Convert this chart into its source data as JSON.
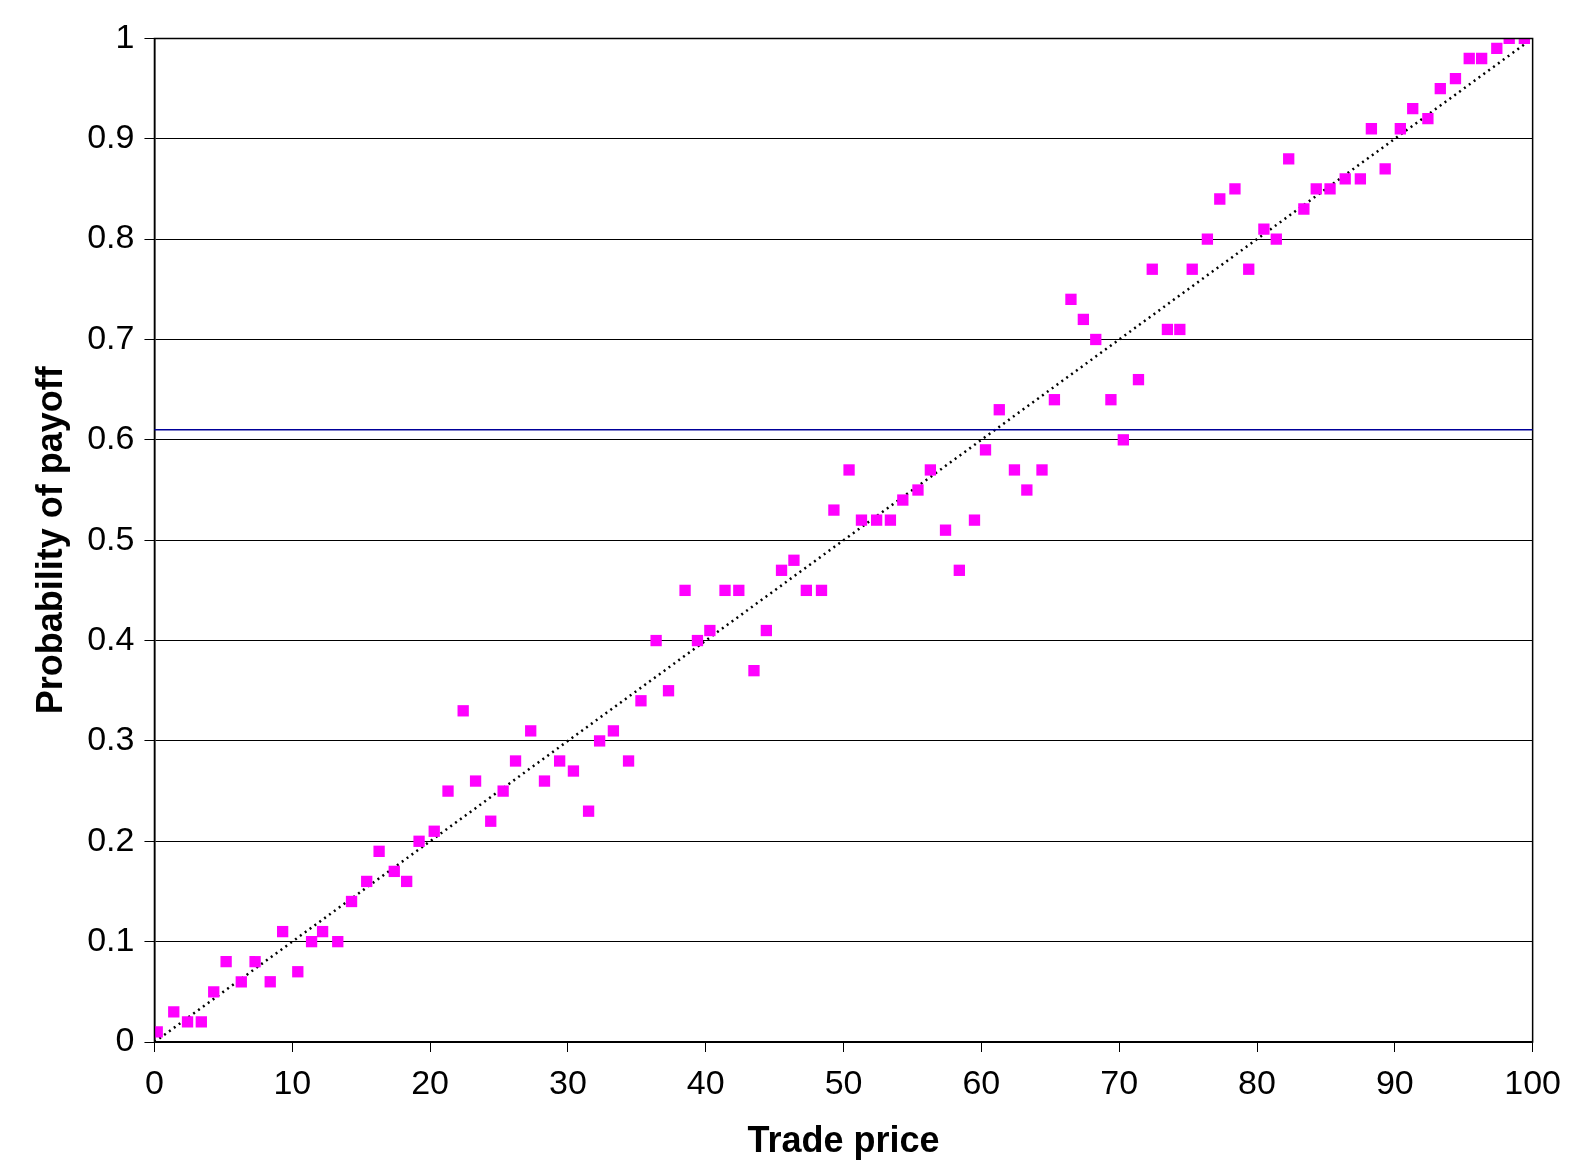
{
  "chart_data": {
    "type": "scatter",
    "xlabel": "Trade price",
    "ylabel": "Probability of payoff",
    "xlim": [
      0,
      100
    ],
    "xticks": [
      0,
      10,
      20,
      30,
      40,
      50,
      60,
      70,
      80,
      90,
      100
    ],
    "ylim": [
      0,
      1
    ],
    "yticks": [
      0,
      0.1,
      0.2,
      0.3,
      0.4,
      0.5,
      0.6,
      0.7,
      0.8,
      0.9,
      1
    ],
    "grid": "y",
    "legend": false,
    "marker": "square",
    "series": [
      {
        "color": "#ff00ff",
        "x": [
          0.2,
          1.4,
          2.4,
          3.4,
          4.3,
          5.2,
          6.3,
          7.3,
          8.4,
          9.3,
          10.4,
          11.4,
          12.2,
          13.3,
          14.3,
          15.4,
          16.3,
          17.4,
          18.3,
          19.2,
          20.3,
          21.3,
          22.4,
          23.3,
          24.4,
          25.3,
          26.2,
          27.3,
          28.3,
          29.4,
          30.4,
          31.5,
          32.3,
          33.3,
          34.4,
          35.3,
          36.4,
          37.3,
          38.5,
          39.4,
          40.3,
          41.4,
          42.4,
          43.5,
          44.4,
          45.5,
          46.4,
          47.3,
          48.4,
          49.3,
          50.4,
          51.3,
          52.4,
          53.4,
          54.3,
          55.4,
          56.3,
          57.4,
          58.4,
          59.5,
          60.3,
          61.3,
          62.4,
          63.3,
          64.4,
          65.3,
          66.5,
          67.4,
          68.3,
          69.4,
          70.3,
          71.4,
          72.4,
          73.5,
          74.4,
          75.3,
          76.4,
          77.3,
          78.4,
          79.4,
          80.5,
          81.4,
          82.3,
          83.4,
          84.3,
          85.3,
          86.4,
          87.5,
          88.3,
          89.3,
          90.4,
          91.3,
          92.4,
          93.3,
          94.4,
          95.4,
          96.3,
          97.4,
          98.3,
          99.4
        ],
        "values": [
          0.01,
          0.03,
          0.02,
          0.02,
          0.05,
          0.08,
          0.06,
          0.08,
          0.06,
          0.11,
          0.07,
          0.1,
          0.11,
          0.1,
          0.14,
          0.16,
          0.19,
          0.17,
          0.16,
          0.2,
          0.21,
          0.25,
          0.33,
          0.26,
          0.22,
          0.25,
          0.28,
          0.31,
          0.26,
          0.28,
          0.27,
          0.23,
          0.3,
          0.31,
          0.28,
          0.34,
          0.4,
          0.35,
          0.45,
          0.4,
          0.41,
          0.45,
          0.45,
          0.37,
          0.41,
          0.47,
          0.48,
          0.45,
          0.45,
          0.53,
          0.57,
          0.52,
          0.52,
          0.52,
          0.54,
          0.55,
          0.57,
          0.51,
          0.47,
          0.52,
          0.59,
          0.63,
          0.57,
          0.55,
          0.57,
          0.64,
          0.74,
          0.72,
          0.7,
          0.64,
          0.6,
          0.66,
          0.77,
          0.71,
          0.71,
          0.77,
          0.8,
          0.84,
          0.85,
          0.77,
          0.81,
          0.8,
          0.88,
          0.83,
          0.85,
          0.85,
          0.86,
          0.86,
          0.91,
          0.87,
          0.91,
          0.93,
          0.92,
          0.95,
          0.96,
          0.98,
          0.98,
          0.99,
          1.0,
          1.0
        ]
      },
      {
        "type": "line",
        "color": "#000000",
        "line_style": "dotted",
        "marker": "none",
        "x": [
          0,
          100
        ],
        "values": [
          0,
          1
        ]
      }
    ],
    "ref_lines": [
      {
        "axis": "y",
        "value": 0.61,
        "color": "#000099"
      }
    ]
  }
}
